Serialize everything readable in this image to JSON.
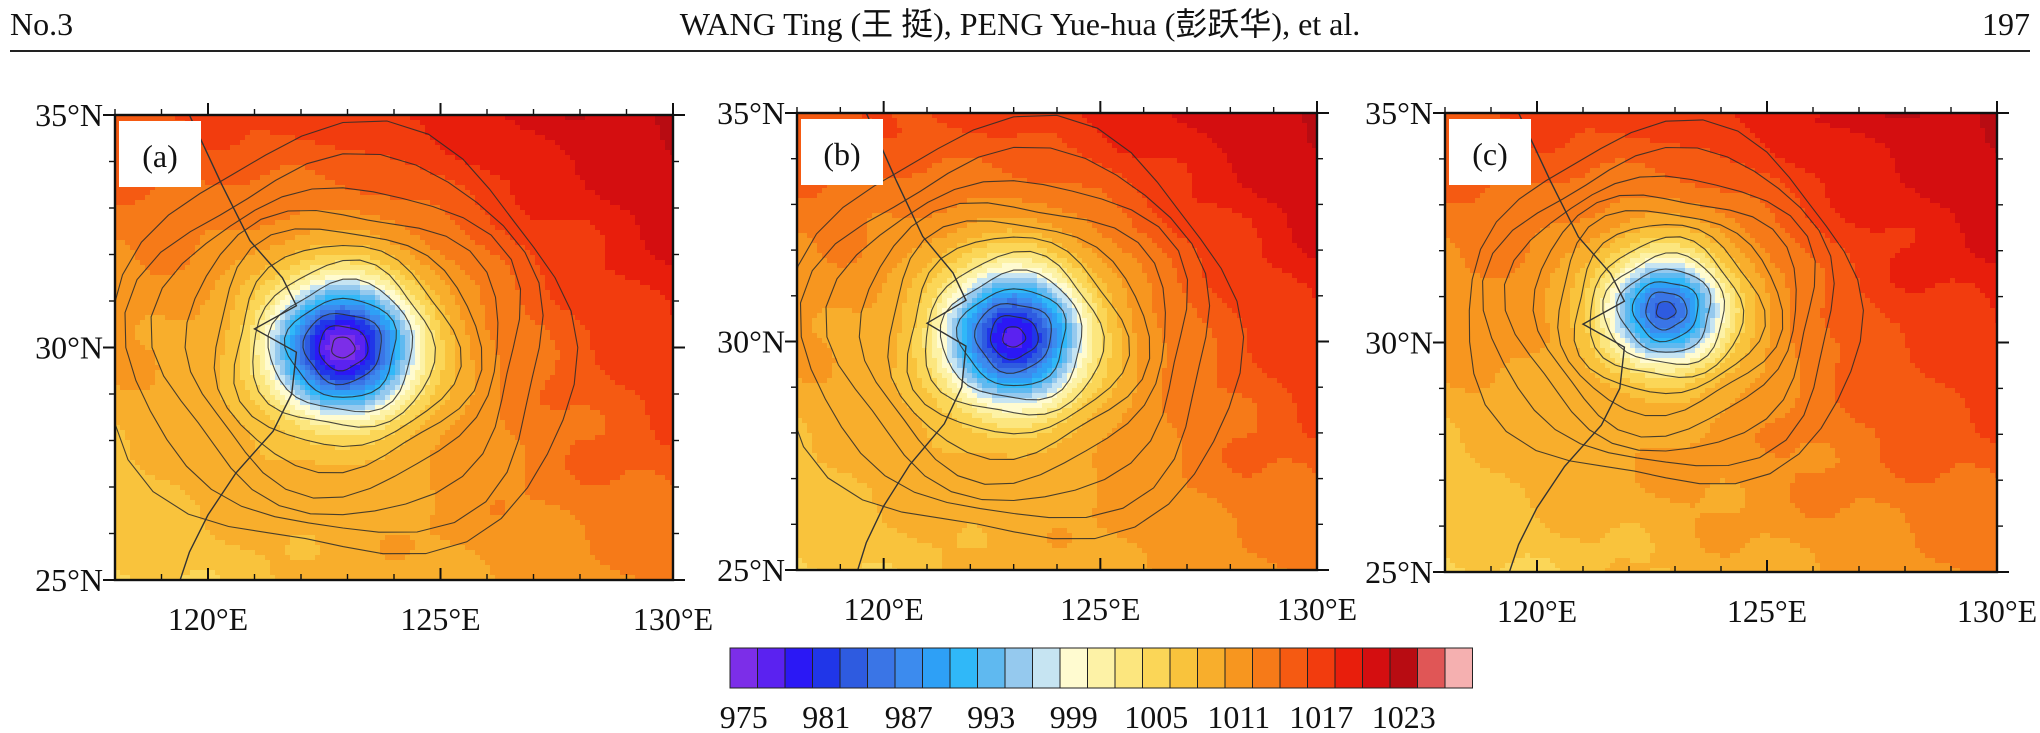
{
  "header": {
    "journal_no": "No.3",
    "authors": "WANG Ting (王  挺), PENG Yue-hua (彭跃华), et al.",
    "page_number": "197"
  },
  "panels": [
    {
      "label": "(a)",
      "center_lon": 122.9,
      "center_lat": 30.0,
      "spread": 1.0,
      "min": 975,
      "grad_dir": 0.6
    },
    {
      "label": "(b)",
      "center_lon": 123.0,
      "center_lat": 30.1,
      "spread": 1.05,
      "min": 978,
      "grad_dir": 0.6
    },
    {
      "label": "(c)",
      "center_lon": 122.8,
      "center_lat": 30.7,
      "spread": 0.85,
      "min": 984,
      "grad_dir": 0.6
    }
  ],
  "axes": {
    "x_ticks": [
      "120°E",
      "125°E",
      "130°E"
    ],
    "x_tick_values": [
      120,
      125,
      130
    ],
    "y_ticks": [
      "25°N",
      "30°N",
      "35°N"
    ],
    "y_tick_values": [
      25,
      30,
      35
    ],
    "lon_range": [
      118,
      130
    ],
    "lat_range": [
      25,
      35
    ]
  },
  "colorbar": {
    "levels": [
      975,
      977,
      979,
      981,
      983,
      985,
      987,
      989,
      991,
      993,
      995,
      997,
      999,
      1001,
      1003,
      1005,
      1007,
      1009,
      1011,
      1013,
      1015,
      1017,
      1019,
      1021,
      1023,
      1025,
      1027
    ],
    "colors": [
      "#7c2ee8",
      "#5b22f0",
      "#2b18f5",
      "#2036e8",
      "#2e5be0",
      "#3a75e6",
      "#3c8bee",
      "#2ea0f6",
      "#30b8f8",
      "#5fb9f0",
      "#95c9ee",
      "#c6e4f2",
      "#fffbd0",
      "#fdf2a6",
      "#fce67e",
      "#fbd657",
      "#f9c33c",
      "#f8ae2c",
      "#f7961f",
      "#f67a18",
      "#f55a12",
      "#f23c0e",
      "#e81e0c",
      "#d40e10",
      "#b80c12",
      "#e05656",
      "#f5b0b0"
    ],
    "tick_labels": [
      "975",
      "981",
      "987",
      "993",
      "999",
      "1005",
      "1011",
      "1017",
      "1023"
    ]
  }
}
